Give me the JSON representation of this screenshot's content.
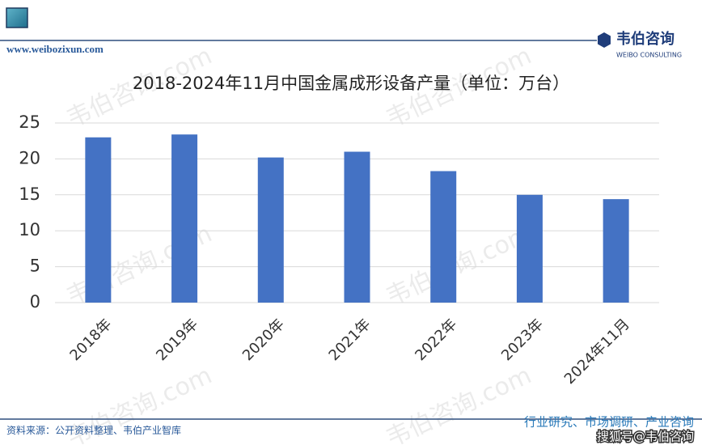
{
  "chart_data": {
    "type": "bar",
    "title": "2018-2024年11月中国金属成形设备产量（单位：万台）",
    "categories": [
      "2018年",
      "2019年",
      "2020年",
      "2021年",
      "2022年",
      "2023年",
      "2024年11月"
    ],
    "values": [
      23.0,
      23.4,
      20.2,
      21.0,
      18.3,
      15.0,
      14.4
    ],
    "color": "#4472c4",
    "ylim": [
      0,
      25
    ],
    "yticks": [
      0,
      5,
      10,
      15,
      20,
      25
    ],
    "grid": true
  },
  "header": {
    "url": "www.weibozixun.com",
    "logo_cn": "韦伯咨询",
    "logo_en": "WEIBO CONSULTING"
  },
  "footer": {
    "source": "资料来源：公开资料整理、韦伯产业智库",
    "slogan": "行业研究、市场调研、产业咨询",
    "platform": "搜狐号@韦伯咨询"
  },
  "watermark": "韦伯咨询.com"
}
